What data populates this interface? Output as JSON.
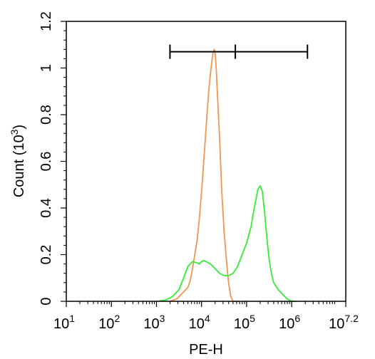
{
  "chart_data": {
    "type": "line",
    "xlabel": "PE-H",
    "ylabel": {
      "prefix": "Count",
      "unit_open": "(10",
      "unit_exp": "3",
      "unit_close": ")"
    },
    "x_scale": "log",
    "xlim": [
      1,
      7.2
    ],
    "ylim": [
      0,
      1.2
    ],
    "x_ticks": [
      {
        "base": "10",
        "exp": "1"
      },
      {
        "base": "10",
        "exp": "2"
      },
      {
        "base": "10",
        "exp": "3"
      },
      {
        "base": "10",
        "exp": "4"
      },
      {
        "base": "10",
        "exp": "5"
      },
      {
        "base": "10",
        "exp": "6"
      },
      {
        "base": "10",
        "exp": "7.2"
      }
    ],
    "x_tick_values": [
      1,
      2,
      3,
      4,
      5,
      6,
      7.2
    ],
    "y_ticks": [
      "0",
      "0.2",
      "0.4",
      "0.6",
      "0.8",
      "1",
      "1.2"
    ],
    "y_tick_values": [
      0,
      0.2,
      0.4,
      0.6,
      0.8,
      1.0,
      1.2
    ],
    "gate": {
      "x_start": 3.3,
      "x_mid": 4.75,
      "x_end": 6.35,
      "y": 1.07
    },
    "series": [
      {
        "color": "#ef9650",
        "x": [
          3.3,
          3.45,
          3.6,
          3.7,
          3.75,
          3.8,
          3.85,
          3.9,
          3.95,
          4.0,
          4.05,
          4.1,
          4.15,
          4.2,
          4.25,
          4.28,
          4.3,
          4.32,
          4.35,
          4.4,
          4.45,
          4.5,
          4.55,
          4.6,
          4.65,
          4.7,
          4.75,
          4.85
        ],
        "y": [
          0.0,
          0.01,
          0.04,
          0.06,
          0.09,
          0.14,
          0.2,
          0.26,
          0.35,
          0.47,
          0.6,
          0.74,
          0.88,
          0.98,
          1.06,
          1.08,
          1.07,
          1.02,
          0.9,
          0.7,
          0.47,
          0.3,
          0.18,
          0.08,
          0.02,
          0.0,
          0.0,
          0.0
        ]
      },
      {
        "color": "#33ee33",
        "x": [
          3.0,
          3.2,
          3.35,
          3.5,
          3.6,
          3.7,
          3.8,
          3.9,
          3.95,
          4.0,
          4.05,
          4.1,
          4.15,
          4.2,
          4.3,
          4.4,
          4.5,
          4.6,
          4.7,
          4.8,
          4.9,
          5.0,
          5.1,
          5.15,
          5.2,
          5.25,
          5.3,
          5.35,
          5.4,
          5.45,
          5.5,
          5.55,
          5.6,
          5.7,
          5.8,
          5.9,
          6.0,
          6.1
        ],
        "y": [
          0.0,
          0.005,
          0.02,
          0.05,
          0.1,
          0.15,
          0.17,
          0.165,
          0.16,
          0.17,
          0.175,
          0.17,
          0.165,
          0.16,
          0.14,
          0.12,
          0.11,
          0.11,
          0.12,
          0.15,
          0.2,
          0.25,
          0.32,
          0.38,
          0.43,
          0.48,
          0.495,
          0.47,
          0.38,
          0.27,
          0.18,
          0.12,
          0.08,
          0.05,
          0.03,
          0.01,
          0.0,
          0.0
        ]
      }
    ]
  }
}
